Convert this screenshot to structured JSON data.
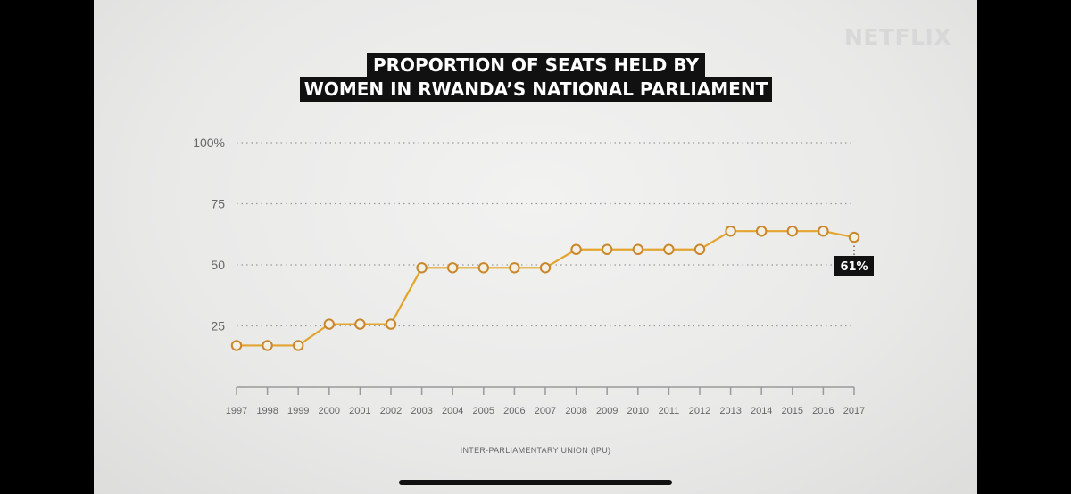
{
  "brand": "NETFLIX",
  "title_line1": "PROPORTION OF SEATS HELD BY",
  "title_line2": "WOMEN IN RWANDA’S NATIONAL PARLIAMENT",
  "source": "INTER-PARLIAMENTARY UNION (IPU)",
  "colors": {
    "line": "#e3a52f",
    "marker_fill": "#f3efe6",
    "marker_stroke": "#c9862a",
    "label_bg": "#111111"
  },
  "chart_data": {
    "type": "line",
    "title": "PROPORTION OF SEATS HELD BY WOMEN IN RWANDA’S NATIONAL PARLIAMENT",
    "categories": [
      "1997",
      "1998",
      "1999",
      "2000",
      "2001",
      "2002",
      "2003",
      "2004",
      "2005",
      "2006",
      "2007",
      "2008",
      "2009",
      "2010",
      "2011",
      "2012",
      "2013",
      "2014",
      "2015",
      "2016",
      "2017"
    ],
    "values": [
      17,
      17,
      17,
      25.7,
      25.7,
      25.7,
      48.8,
      48.8,
      48.8,
      48.8,
      48.8,
      56.3,
      56.3,
      56.3,
      56.3,
      56.3,
      63.8,
      63.8,
      63.8,
      63.8,
      61.3
    ],
    "y_ticks": [
      {
        "value": 100,
        "label": "100%"
      },
      {
        "value": 75,
        "label": "75"
      },
      {
        "value": 50,
        "label": "50"
      },
      {
        "value": 25,
        "label": "25"
      }
    ],
    "ylim": [
      0,
      100
    ],
    "grid": "dotted horizontal",
    "annotation": {
      "category": "2017",
      "label": "61%"
    }
  }
}
